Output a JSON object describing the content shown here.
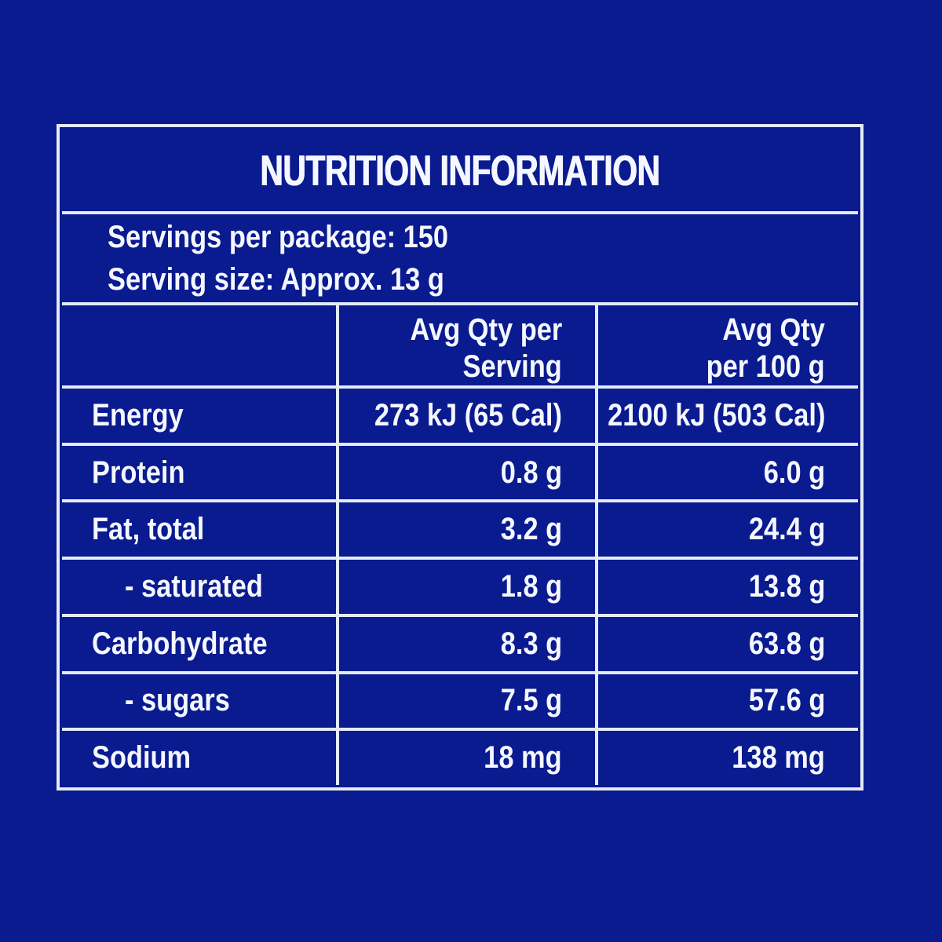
{
  "panel": {
    "title": "NUTRITION INFORMATION",
    "serving_info": {
      "servings_per_package": "Servings per package: 150",
      "serving_size": "Serving size: Approx. 13 g"
    },
    "columns": {
      "per_serving": [
        "Avg Qty per",
        "Serving"
      ],
      "per_100g": [
        "Avg Qty",
        "per 100 g"
      ]
    },
    "rows": [
      {
        "label": "Energy",
        "per_serving": "273 kJ (65 Cal)",
        "per_100g": "2100 kJ (503 Cal)"
      },
      {
        "label": "Protein",
        "per_serving": "0.8 g",
        "per_100g": "6.0 g"
      },
      {
        "label": "Fat, total",
        "per_serving": "3.2 g",
        "per_100g": "24.4 g"
      },
      {
        "label": "- saturated",
        "per_serving": "1.8 g",
        "per_100g": "13.8 g"
      },
      {
        "label": "Carbohydrate",
        "per_serving": "8.3 g",
        "per_100g": "63.8 g"
      },
      {
        "label": "- sugars",
        "per_serving": "7.5 g",
        "per_100g": "57.6 g"
      },
      {
        "label": "Sodium",
        "per_serving": "18 mg",
        "per_100g": "138 mg"
      }
    ],
    "colors": {
      "background": "#0a1a8f",
      "grid_line": "#e3ebf7",
      "text": "#f4f7ff"
    }
  }
}
